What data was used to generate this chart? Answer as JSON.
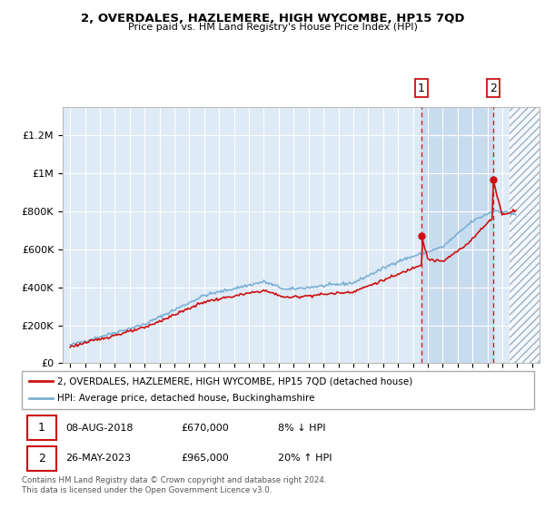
{
  "title": "2, OVERDALES, HAZLEMERE, HIGH WYCOMBE, HP15 7QD",
  "subtitle": "Price paid vs. HM Land Registry's House Price Index (HPI)",
  "ylabel_ticks": [
    "£0",
    "£200K",
    "£400K",
    "£600K",
    "£800K",
    "£1M",
    "£1.2M"
  ],
  "ytick_values": [
    0,
    200000,
    400000,
    600000,
    800000,
    1000000,
    1200000
  ],
  "ylim": [
    0,
    1350000
  ],
  "xlim_start": 1994.5,
  "xlim_end": 2026.5,
  "hpi_color": "#7ab0d4",
  "price_color": "#cc1111",
  "bg_color": "#deeaf5",
  "highlight_color": "#c8dcf0",
  "marker1_date": 2018.58,
  "marker2_date": 2023.38,
  "marker1_price": 670000,
  "marker2_price": 965000,
  "highlight_start": 2018.58,
  "highlight_end": 2023.38,
  "future_start": 2024.5,
  "legend_label1": "2, OVERDALES, HAZLEMERE, HIGH WYCOMBE, HP15 7QD (detached house)",
  "legend_label2": "HPI: Average price, detached house, Buckinghamshire",
  "table_row1": [
    "1",
    "08-AUG-2018",
    "£670,000",
    "8% ↓ HPI"
  ],
  "table_row2": [
    "2",
    "26-MAY-2023",
    "£965,000",
    "20% ↑ HPI"
  ],
  "footnote": "Contains HM Land Registry data © Crown copyright and database right 2024.\nThis data is licensed under the Open Government Licence v3.0."
}
